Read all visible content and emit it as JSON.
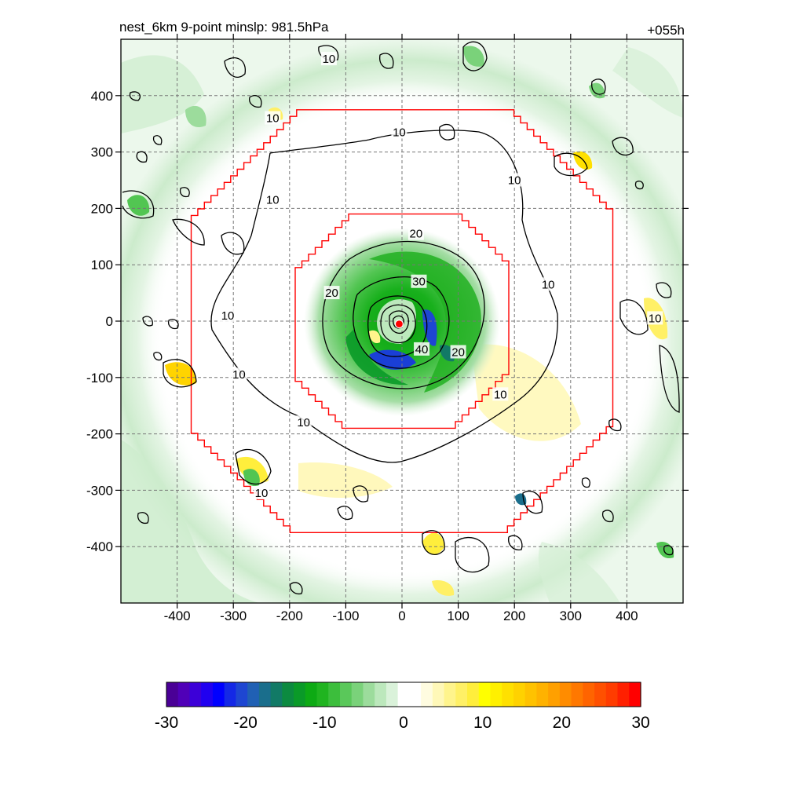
{
  "chart_data": {
    "type": "heatmap",
    "title": "nest_6km  9-point minslp: 981.5hPa",
    "time_label": "+055h",
    "x": {
      "ticks": [
        -400,
        -300,
        -200,
        -100,
        0,
        100,
        200,
        300,
        400
      ],
      "lim": [
        -500,
        500
      ]
    },
    "y": {
      "ticks": [
        400,
        300,
        200,
        100,
        0,
        -100,
        -200,
        -300,
        -400
      ],
      "lim": [
        -500,
        500
      ]
    },
    "grid": true,
    "center_marker": {
      "x": -5,
      "y": -5,
      "color": "#ff0000"
    },
    "nest_boundaries": [
      {
        "name": "",
        "color": "#ff0000",
        "halfwidth": 375
      },
      {
        "name": "",
        "color": "#ff0000",
        "halfwidth": 190
      }
    ],
    "contours": {
      "color": "#000000",
      "levels": [
        10,
        20,
        30,
        40
      ],
      "labels": [
        {
          "text": "10",
          "x": -5,
          "y": 335
        },
        {
          "text": "10",
          "x": -230,
          "y": 215
        },
        {
          "text": "10",
          "x": -310,
          "y": 10
        },
        {
          "text": "10",
          "x": -290,
          "y": -95
        },
        {
          "text": "10",
          "x": -175,
          "y": -180
        },
        {
          "text": "10",
          "x": 200,
          "y": 250
        },
        {
          "text": "10",
          "x": 260,
          "y": 65
        },
        {
          "text": "10",
          "x": 175,
          "y": -130
        },
        {
          "text": "10",
          "x": 450,
          "y": 5
        },
        {
          "text": "10",
          "x": -230,
          "y": 360
        },
        {
          "text": "10",
          "x": -130,
          "y": 465
        },
        {
          "text": "10",
          "x": -250,
          "y": -305
        },
        {
          "text": "20",
          "x": 25,
          "y": 155
        },
        {
          "text": "20",
          "x": -125,
          "y": 50
        },
        {
          "text": "20",
          "x": 100,
          "y": -55
        },
        {
          "text": "30",
          "x": 30,
          "y": 70
        },
        {
          "text": "40",
          "x": 35,
          "y": -50
        }
      ]
    },
    "colorbar": {
      "ticks": [
        -30,
        -20,
        -10,
        0,
        10,
        20,
        30
      ],
      "min": -30,
      "max": 30,
      "colors": [
        "#4a0096",
        "#5000b8",
        "#3c00d8",
        "#2000f0",
        "#0000ff",
        "#1428e6",
        "#1e46d2",
        "#2060b4",
        "#1a6e8c",
        "#127a66",
        "#0c8a40",
        "#0a9a28",
        "#0daa14",
        "#20b420",
        "#3cbe3c",
        "#5ac85a",
        "#7ad27a",
        "#9cdc9c",
        "#bce8bc",
        "#daf2da",
        "#ffffff",
        "#ffffff",
        "#fffce0",
        "#fff8b8",
        "#fff48c",
        "#fff066",
        "#ffee3c",
        "#ffff00",
        "#fff000",
        "#ffe000",
        "#ffd200",
        "#ffc200",
        "#ffb200",
        "#ffa000",
        "#ff8c00",
        "#ff7800",
        "#ff6400",
        "#ff5000",
        "#ff3c00",
        "#ff2000",
        "#ff0000"
      ]
    }
  }
}
